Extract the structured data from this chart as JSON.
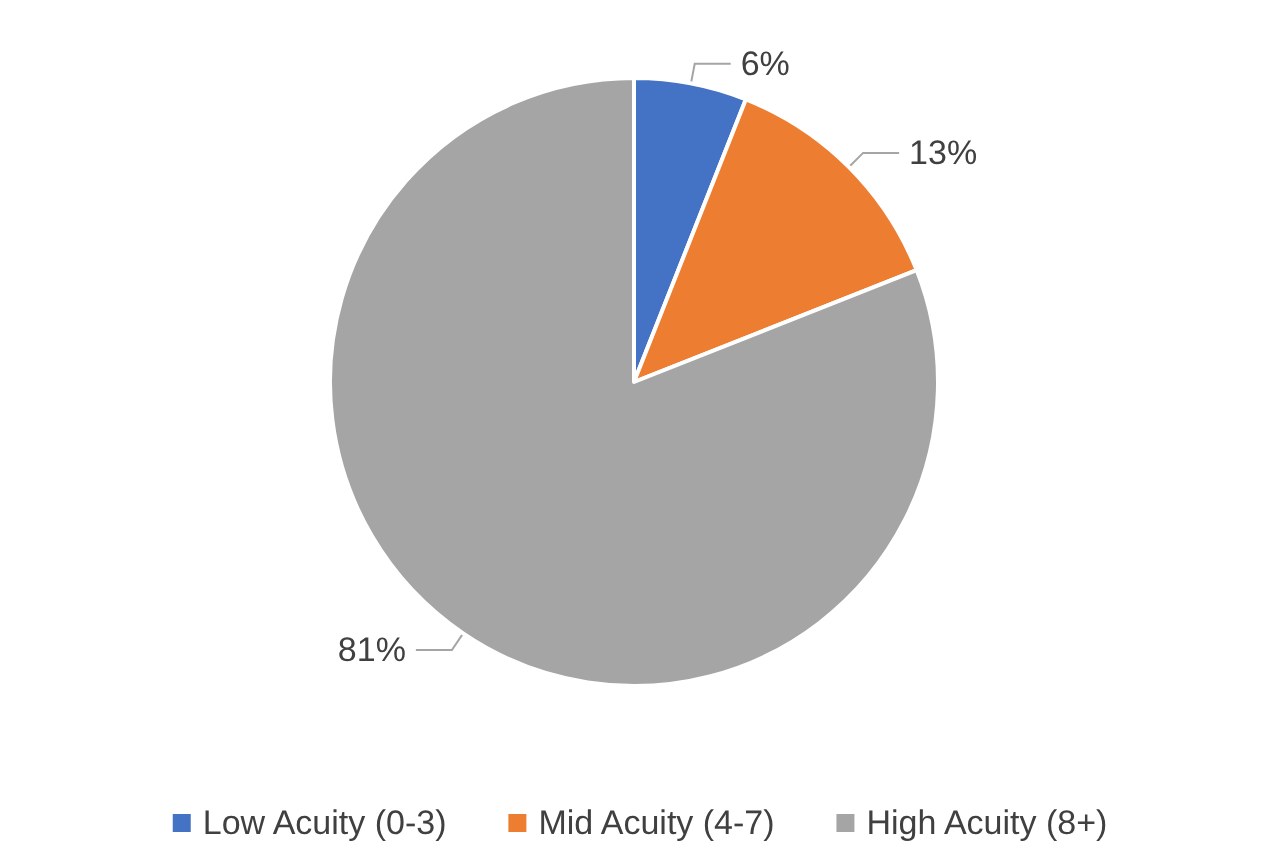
{
  "chart_data": {
    "type": "pie",
    "categories": [
      "Low Acuity (0-3)",
      "Mid Acuity (4-7)",
      "High Acuity (8+)"
    ],
    "values": [
      6,
      13,
      81
    ],
    "colors": [
      "#4472c4",
      "#ed7d31",
      "#a5a5a5"
    ],
    "value_labels": [
      "6%",
      "13%",
      "81%"
    ],
    "legend": "bottom"
  }
}
